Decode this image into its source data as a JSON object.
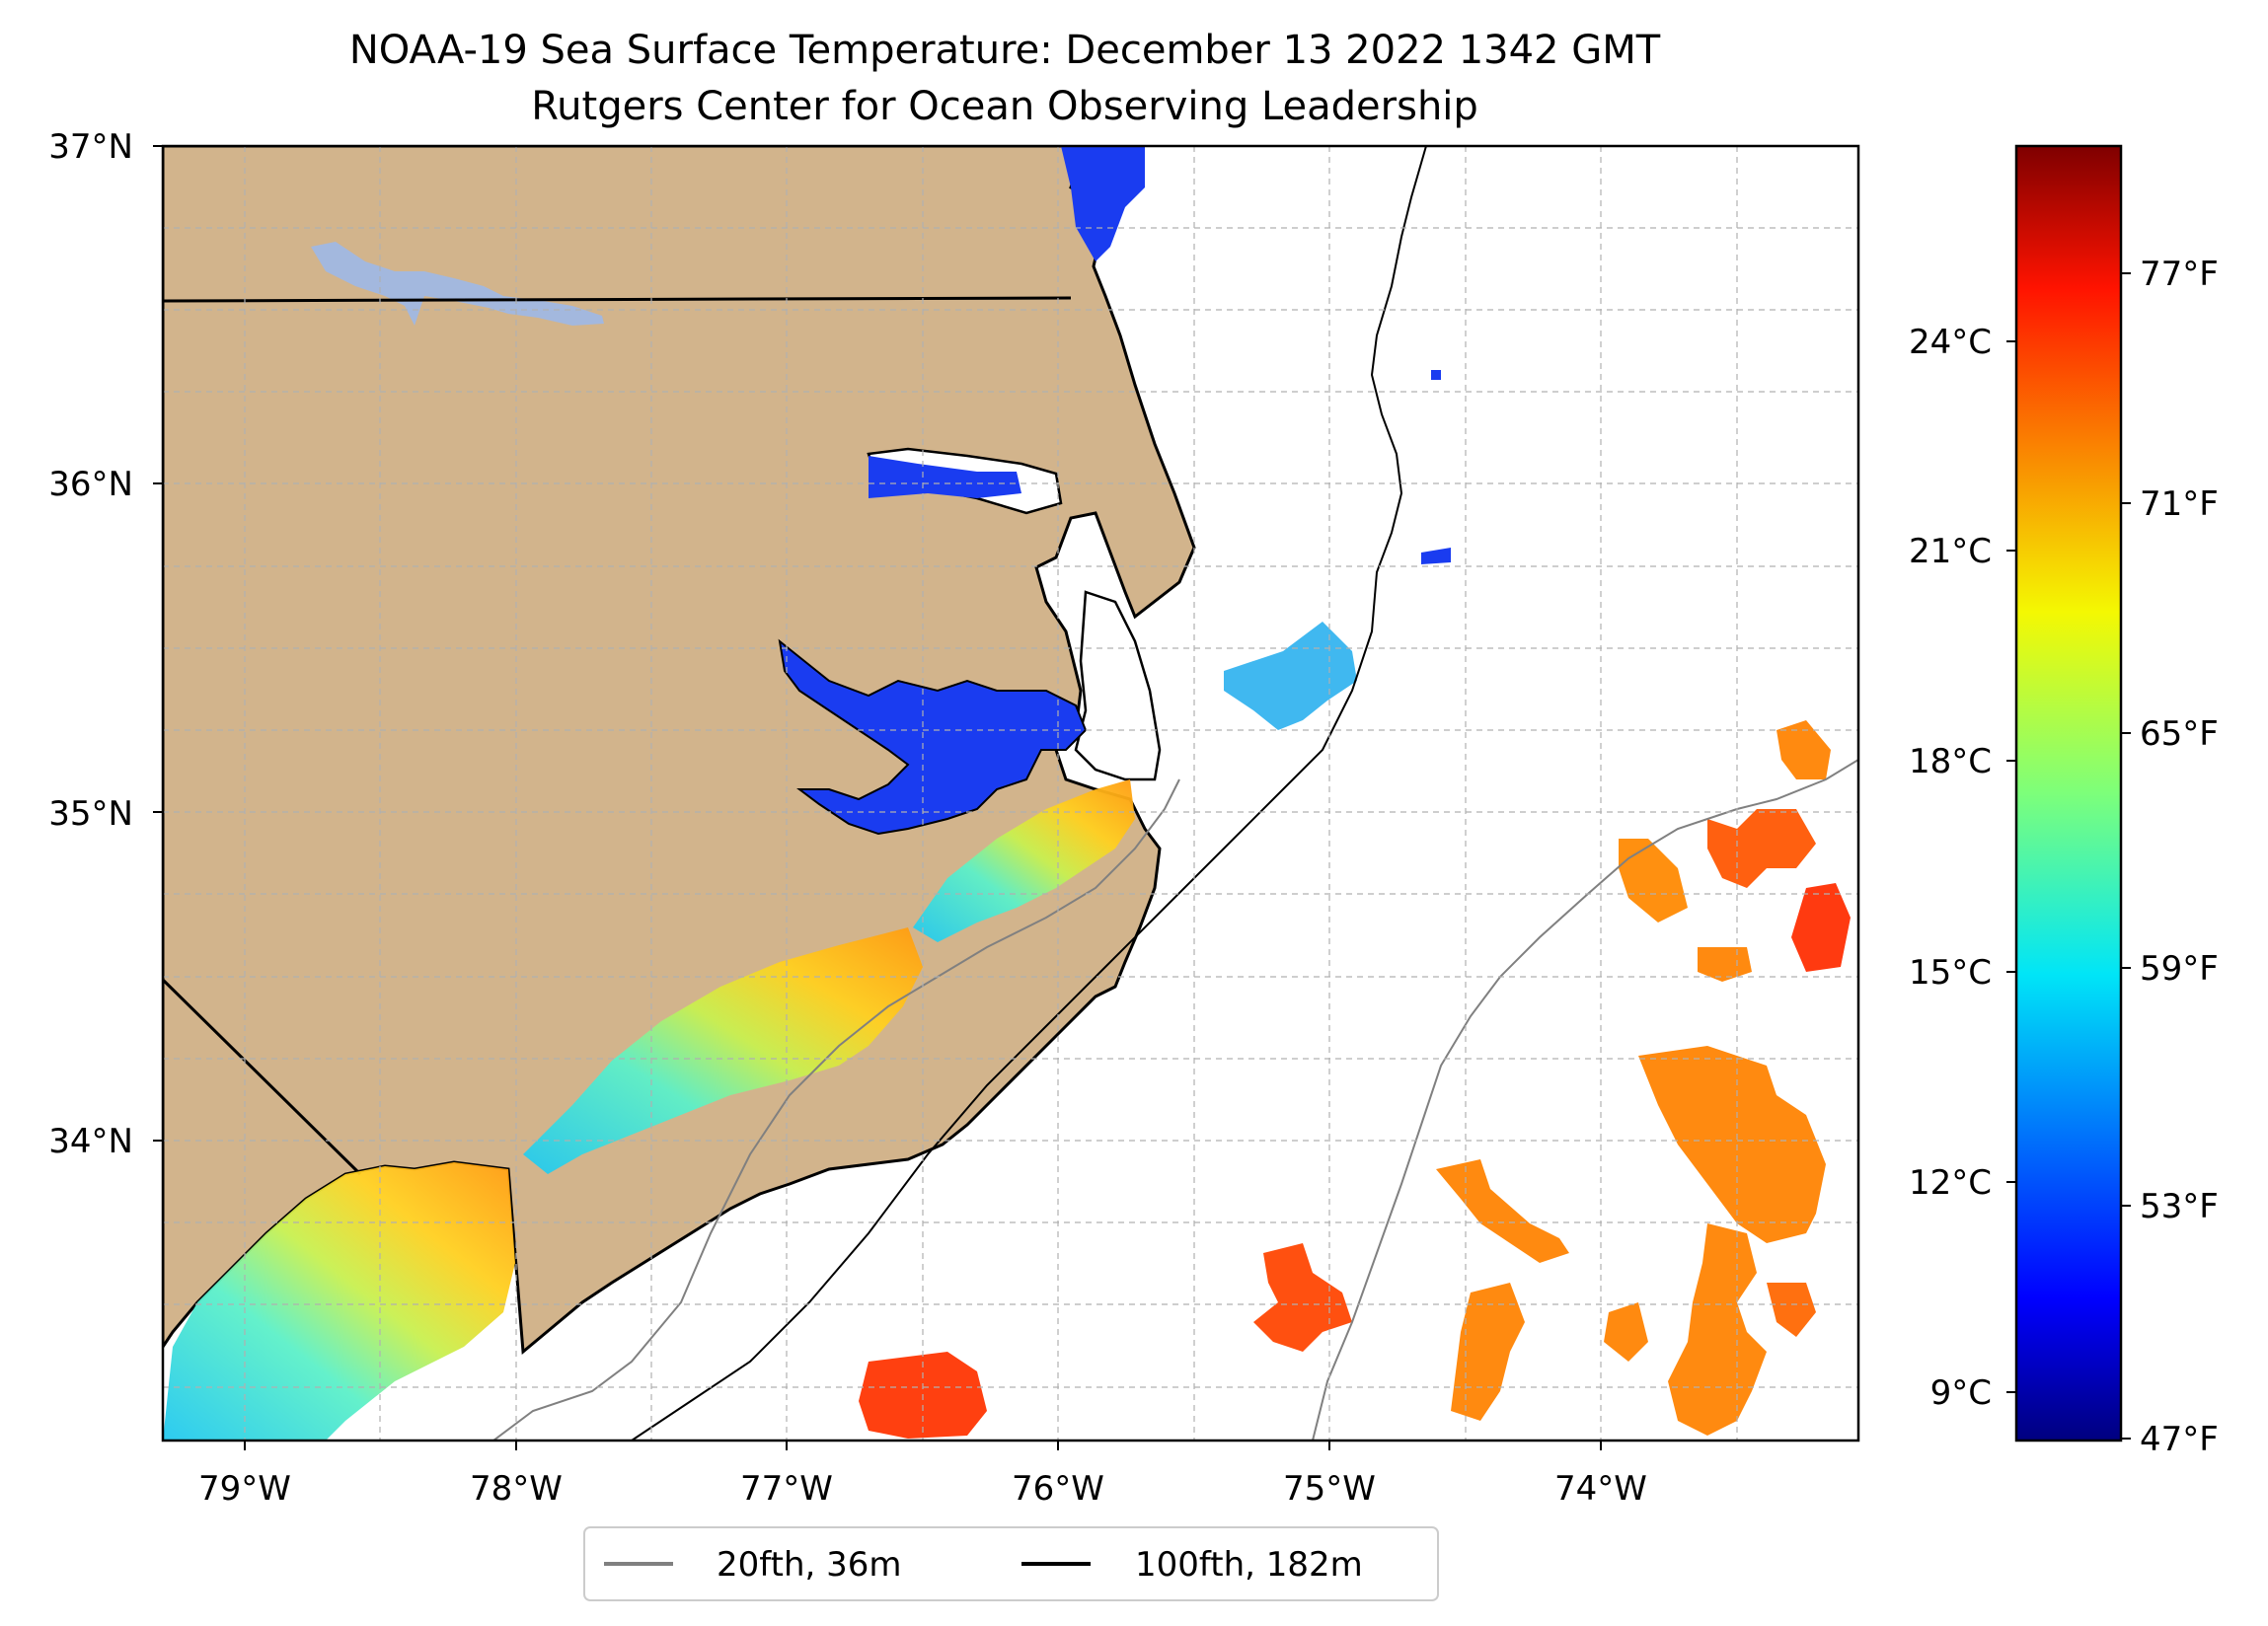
{
  "title": {
    "line1": "NOAA-19 Sea Surface Temperature: December 13 2022 1342 GMT",
    "line2": "Rutgers Center for Ocean Observing Leadership"
  },
  "map": {
    "lat_labels": [
      "37°N",
      "36°N",
      "35°N",
      "34°N"
    ],
    "lon_labels": [
      "79°W",
      "78°W",
      "77°W",
      "76°W",
      "75°W",
      "74°W"
    ],
    "land_color": "#d2b48c",
    "inland_water_color": "#a3b8de",
    "ocean_color": "#ffffff"
  },
  "legend": {
    "items": [
      {
        "label": "20fth, 36m",
        "color": "#808080"
      },
      {
        "label": "100fth, 182m",
        "color": "#000000"
      }
    ]
  },
  "colorbar": {
    "celsius_ticks": [
      "24°C",
      "21°C",
      "18°C",
      "15°C",
      "12°C",
      "9°C"
    ],
    "fahrenheit_ticks": [
      "77°F",
      "71°F",
      "65°F",
      "59°F",
      "53°F",
      "47°F"
    ],
    "colormap": "jet"
  }
}
